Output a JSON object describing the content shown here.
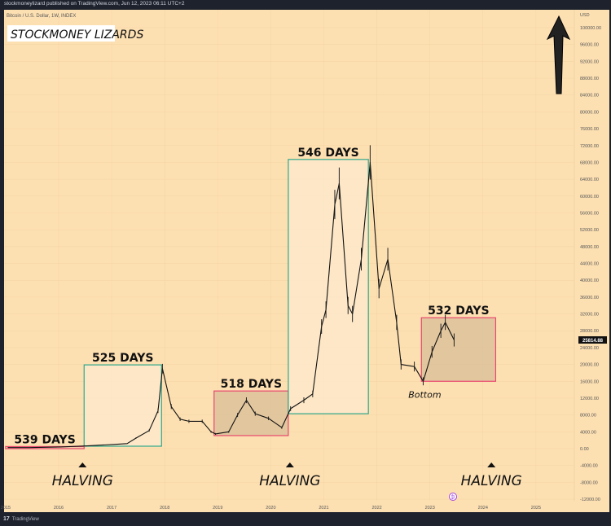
{
  "header": {
    "published": "stockmoneylizard published on TradingView.com, Jun 12, 2023 06:11 UTC+2",
    "symbol": "Bitcoin / U.S. Dollar, 1W, INDEX",
    "brand": "STOCKMONEY LIZARDS"
  },
  "footer": {
    "logo": "TradingView"
  },
  "chart_data": {
    "type": "line",
    "title": "",
    "currency": "USD",
    "background": "#fde0b2",
    "last_price": "25814.88",
    "ylim": [
      -12000,
      100000
    ],
    "xlim": [
      2015.0,
      2025.7
    ],
    "y_ticks": [
      "100000.00",
      "96000.00",
      "92000.00",
      "88000.00",
      "84000.00",
      "80000.00",
      "76000.00",
      "72000.00",
      "68000.00",
      "64000.00",
      "60000.00",
      "56000.00",
      "52000.00",
      "48000.00",
      "44000.00",
      "40000.00",
      "36000.00",
      "32000.00",
      "28000.00",
      "24000.00",
      "20000.00",
      "16000.00",
      "12000.00",
      "8000.00",
      "4000.00",
      "0.00",
      "-4000.00",
      "-8000.00",
      "-12000.00"
    ],
    "x_ticks": [
      "2015",
      "2016",
      "2017",
      "2018",
      "2019",
      "2020",
      "2021",
      "2022",
      "2023",
      "2024",
      "2025"
    ],
    "grid": true,
    "series": [
      {
        "x": [
          "2015-01",
          "2015-06",
          "2016-01",
          "2016-07",
          "2017-01",
          "2017-04",
          "2017-06",
          "2017-09",
          "2017-11",
          "2017-12",
          "2018-02",
          "2018-04",
          "2018-06",
          "2018-09",
          "2018-11",
          "2018-12",
          "2019-03",
          "2019-05",
          "2019-07",
          "2019-09",
          "2019-12",
          "2020-03",
          "2020-05",
          "2020-08",
          "2020-10",
          "2020-12",
          "2021-01",
          "2021-03",
          "2021-04",
          "2021-06",
          "2021-07",
          "2021-09",
          "2021-11",
          "2022-01",
          "2022-03",
          "2022-05",
          "2022-06",
          "2022-09",
          "2022-11",
          "2023-01",
          "2023-03",
          "2023-04",
          "2023-06"
        ],
        "values": [
          250,
          250,
          400,
          650,
          1000,
          1200,
          2500,
          4300,
          9000,
          19000,
          10000,
          7000,
          6500,
          6500,
          4000,
          3500,
          4000,
          8000,
          11500,
          8300,
          7200,
          5000,
          9500,
          11500,
          13000,
          29000,
          33000,
          58000,
          63000,
          34000,
          32000,
          45000,
          68000,
          38000,
          45000,
          30000,
          20000,
          19500,
          16000,
          23000,
          28000,
          30000,
          25814.88
        ]
      }
    ],
    "annotations": [
      {
        "label": "539 DAYS",
        "x_start": 2015.0,
        "x_end": 2016.48,
        "y_low": 0,
        "y_high": 500,
        "color": "#e8476f",
        "fill": "#f5c9a8"
      },
      {
        "label": "525 DAYS",
        "x_start": 2016.48,
        "x_end": 2017.94,
        "y_low": 580,
        "y_high": 19900,
        "color": "#2fa88c",
        "fill": "#fde9cc"
      },
      {
        "label": "518 DAYS",
        "x_start": 2018.93,
        "x_end": 2020.33,
        "y_low": 3100,
        "y_high": 13700,
        "color": "#e8476f",
        "fill": "#dbbf98"
      },
      {
        "label": "546 DAYS",
        "x_start": 2020.33,
        "x_end": 2021.84,
        "y_low": 8300,
        "y_high": 68700,
        "color": "#2fa88c",
        "fill": "#fde9cc"
      },
      {
        "label": "532 DAYS",
        "x_start": 2022.84,
        "x_end": 2024.24,
        "y_low": 16000,
        "y_high": 31100,
        "color": "#e8476f",
        "fill": "#dbbf98"
      }
    ],
    "halvings": [
      {
        "label": "HALVING",
        "x": 2016.45
      },
      {
        "label": "HALVING",
        "x": 2020.36
      },
      {
        "label": "HALVING",
        "x": 2024.16
      }
    ],
    "bottom_label": {
      "label": "Bottom",
      "x": 2022.9,
      "y": 16000
    },
    "arrow": "up"
  }
}
